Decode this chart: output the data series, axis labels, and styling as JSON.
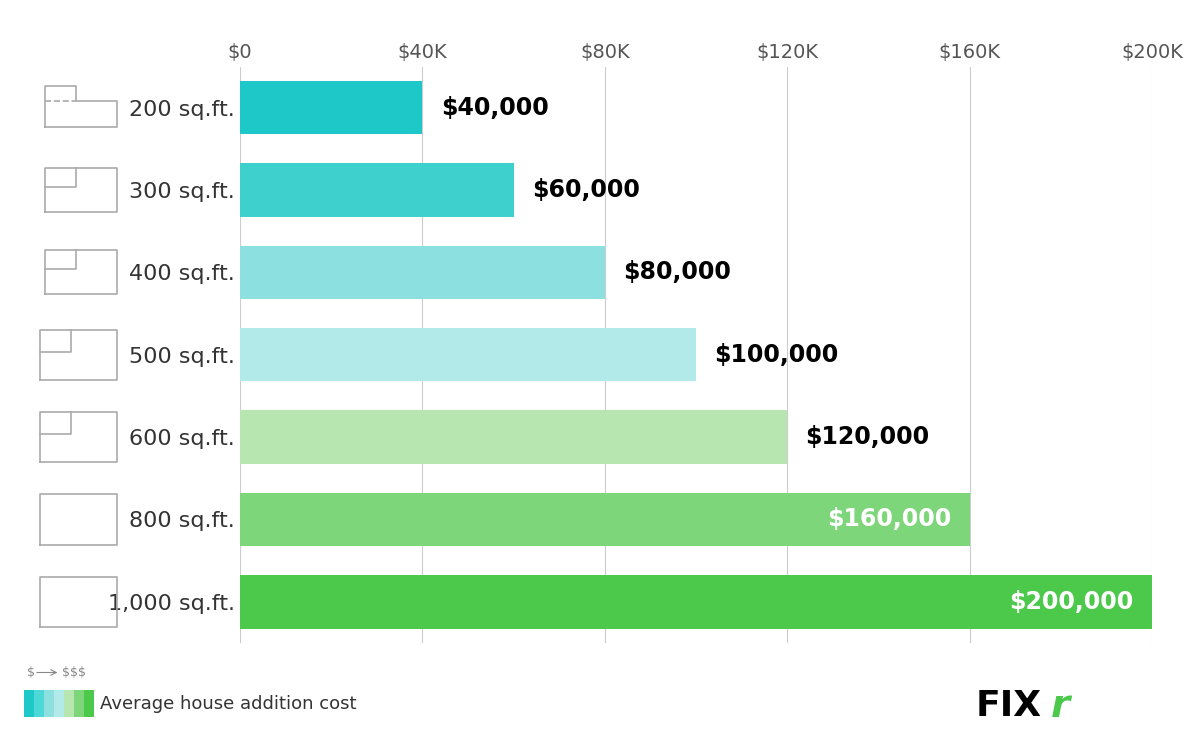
{
  "categories": [
    "1,000 sq.ft.",
    "800 sq.ft.",
    "600 sq.ft.",
    "500 sq.ft.",
    "400 sq.ft.",
    "300 sq.ft.",
    "200 sq.ft."
  ],
  "values": [
    200000,
    160000,
    120000,
    100000,
    80000,
    60000,
    40000
  ],
  "bar_colors": [
    "#4cc94a",
    "#7dd67a",
    "#b8e6b0",
    "#b2eaea",
    "#8de0e0",
    "#3dd0cc",
    "#1ec8c8"
  ],
  "value_labels": [
    "$200,000",
    "$160,000",
    "$120,000",
    "$100,000",
    "$80,000",
    "$60,000",
    "$40,000"
  ],
  "value_label_inside": [
    true,
    true,
    false,
    false,
    false,
    false,
    false
  ],
  "xlim": [
    0,
    200000
  ],
  "xtick_values": [
    0,
    40000,
    80000,
    120000,
    160000,
    200000
  ],
  "xtick_labels": [
    "$0",
    "$40K",
    "$80K",
    "$120K",
    "$160K",
    "$200K"
  ],
  "background_color": "#ffffff",
  "bar_height": 0.65,
  "label_fontsize": 16,
  "tick_fontsize": 14,
  "value_fontsize": 17,
  "grid_color": "#cccccc",
  "legend_colors": [
    "#1ec8c8",
    "#4dd8d8",
    "#8de0e0",
    "#b2eaea",
    "#b8e6b0",
    "#7dd67a",
    "#4cc94a"
  ],
  "legend_text": "Average house addition cost",
  "legend_fontsize": 13,
  "fixr_logo_black": "FIX",
  "fixr_logo_green": "r"
}
